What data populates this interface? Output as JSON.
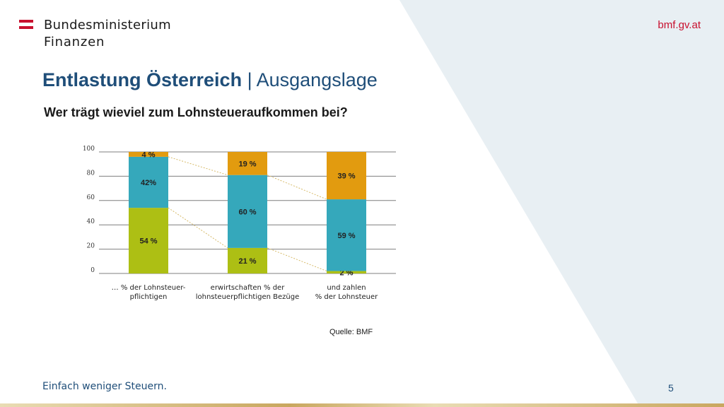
{
  "header": {
    "ministry_name": "Bundesministerium",
    "ministry_sub": "Finanzen",
    "site_link": "bmf.gv.at",
    "flag_colors": [
      "#c8102e",
      "#ffffff",
      "#c8102e"
    ]
  },
  "slide": {
    "title_strong": "Entlastung Österreich",
    "title_separator": "|",
    "title_light": "Ausgangslage",
    "subtitle": "Wer trägt wieviel zum Lohnsteueraufkommen bei?",
    "source": "Quelle: BMF",
    "footer_text": "Einfach weniger Steuern.",
    "page_number": "5"
  },
  "colors": {
    "title": "#1f4e79",
    "accent_red": "#c8102e",
    "series_green": "#adbf14",
    "series_teal": "#35a8bb",
    "series_orange": "#e29b0f",
    "background_shape": "#e8eff3"
  },
  "chart_data": {
    "type": "bar",
    "stacked": true,
    "categories": [
      "… % der Lohnsteuer-\npflichtigen",
      "erwirtschaften % der\nlohnsteuerpflichtigen Bezüge",
      "und zahlen\n% der Lohnsteuer"
    ],
    "series": [
      {
        "values": [
          54,
          21,
          2
        ],
        "labels": [
          "54 %",
          "21 %",
          "2 %"
        ],
        "color": "#adbf14"
      },
      {
        "values": [
          42,
          60,
          59
        ],
        "labels": [
          "42%",
          "60 %",
          "59 %"
        ],
        "color": "#35a8bb"
      },
      {
        "values": [
          4,
          19,
          39
        ],
        "labels": [
          "4 %",
          "19 %",
          "39 %"
        ],
        "color": "#e29b0f"
      }
    ],
    "yticks": [
      "0",
      "20",
      "40",
      "60",
      "80",
      "100"
    ],
    "ylim": [
      0,
      100
    ],
    "grid": true,
    "connector_lines": true
  }
}
